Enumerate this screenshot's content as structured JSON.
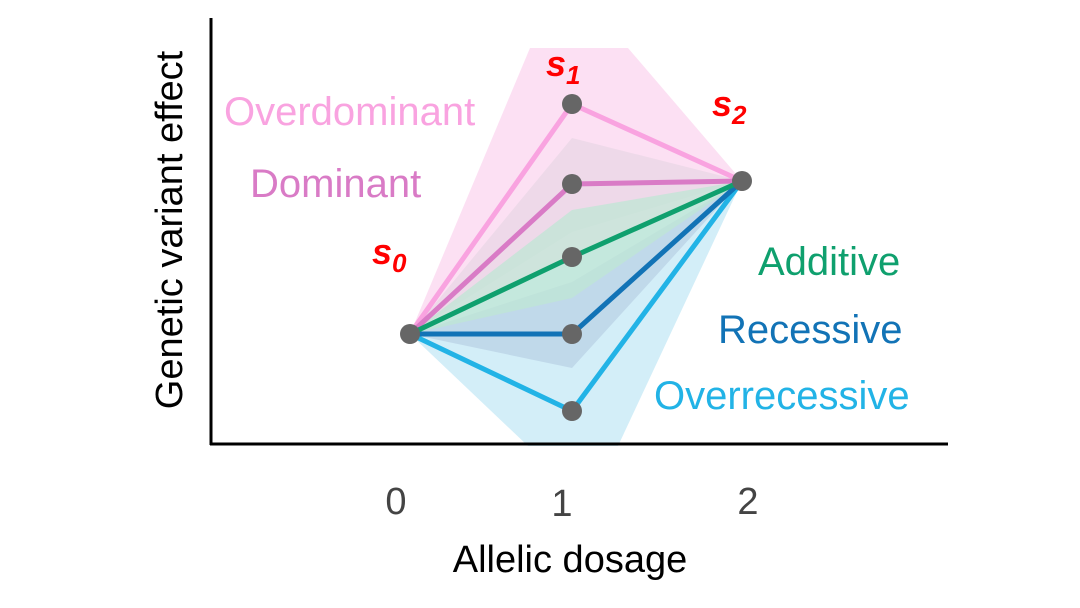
{
  "axes": {
    "x_title": "Allelic dosage",
    "y_title": "Genetic variant effect",
    "x_ticks": [
      "0",
      "1",
      "2"
    ]
  },
  "states": [
    {
      "letter": "s",
      "sub": "0"
    },
    {
      "letter": "s",
      "sub": "1"
    },
    {
      "letter": "s",
      "sub": "2"
    }
  ],
  "models": [
    {
      "key": "overdominant",
      "label": "Overdominant",
      "color": "#f9a3e0",
      "band": "#fbd6ef"
    },
    {
      "key": "dominant",
      "label": "Dominant",
      "color": "#d97bc6",
      "band": "#ead7e6"
    },
    {
      "key": "additive",
      "label": "Additive",
      "color": "#0fa06e",
      "band": "#bfe6d4"
    },
    {
      "key": "recessive",
      "label": "Recessive",
      "color": "#1273b6",
      "band": "#b9d2e6"
    },
    {
      "key": "overrecessive",
      "label": "Overrecessive",
      "color": "#22b3e6",
      "band": "#c4e8f6"
    }
  ],
  "point_color": "#666666"
}
